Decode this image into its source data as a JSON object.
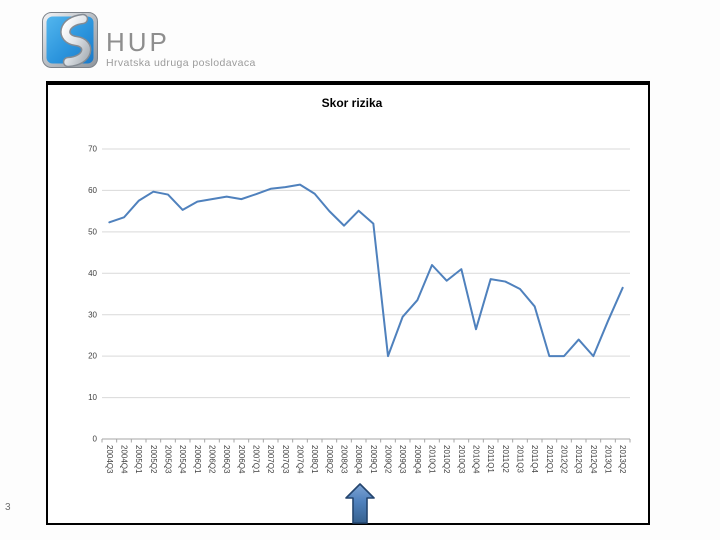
{
  "page": {
    "slide_number": "3",
    "background": "#fdfdfd"
  },
  "header": {
    "logo_acronym": "HUP",
    "logo_subtitle": "Hrvatska udruga poslodavaca",
    "logo_icon": "hup-chain-emblem-icon",
    "logo_colors": {
      "blue_top": "#53b6ee",
      "blue_bottom": "#1b7ac9",
      "silver": "#c9cdd2",
      "text_gray": "#8e8e8e"
    }
  },
  "chart_data": {
    "type": "line",
    "title": "Skor rizika",
    "xlabel": "",
    "ylabel": "",
    "ylim": [
      0,
      70
    ],
    "ytick_step": 10,
    "yticks": [
      0,
      10,
      20,
      30,
      40,
      50,
      60,
      70
    ],
    "grid": true,
    "legend": "none",
    "x_label_rotation_deg": 90,
    "categories": [
      "2004Q3",
      "2004Q4",
      "2005Q1",
      "2005Q2",
      "2005Q3",
      "2005Q4",
      "2006Q1",
      "2006Q2",
      "2006Q3",
      "2006Q4",
      "2007Q1",
      "2007Q2",
      "2007Q3",
      "2007Q4",
      "2008Q1",
      "2008Q2",
      "2008Q3",
      "2008Q4",
      "2009Q1",
      "2009Q2",
      "2009Q3",
      "2009Q4",
      "2010Q1",
      "2010Q2",
      "2010Q3",
      "2010Q4",
      "2011Q1",
      "2011Q2",
      "2011Q3",
      "2011Q4",
      "2012Q1",
      "2012Q2",
      "2012Q3",
      "2012Q4",
      "2013Q1",
      "2013Q2"
    ],
    "series": [
      {
        "name": "Skor rizika",
        "values": [
          52.3,
          53.5,
          57.5,
          59.7,
          59,
          55.3,
          57.3,
          57.9,
          58.5,
          57.9,
          59.1,
          60.4,
          60.8,
          61.4,
          59.2,
          55,
          51.5,
          55.1,
          52,
          20,
          29.5,
          33.5,
          42,
          38.2,
          41,
          26.5,
          38.6,
          38,
          36.2,
          32,
          20,
          20,
          24,
          20,
          28.5,
          36.5
        ]
      }
    ],
    "colors": {
      "line": "#4F81BD",
      "grid": "#D9D9D9",
      "axis": "#A6A6A6",
      "label": "#404040",
      "title": "#000000"
    }
  },
  "annotation": {
    "up_arrow": {
      "shape": "block-arrow-up",
      "fill": "#4f81bd",
      "border": "#24456e"
    }
  }
}
